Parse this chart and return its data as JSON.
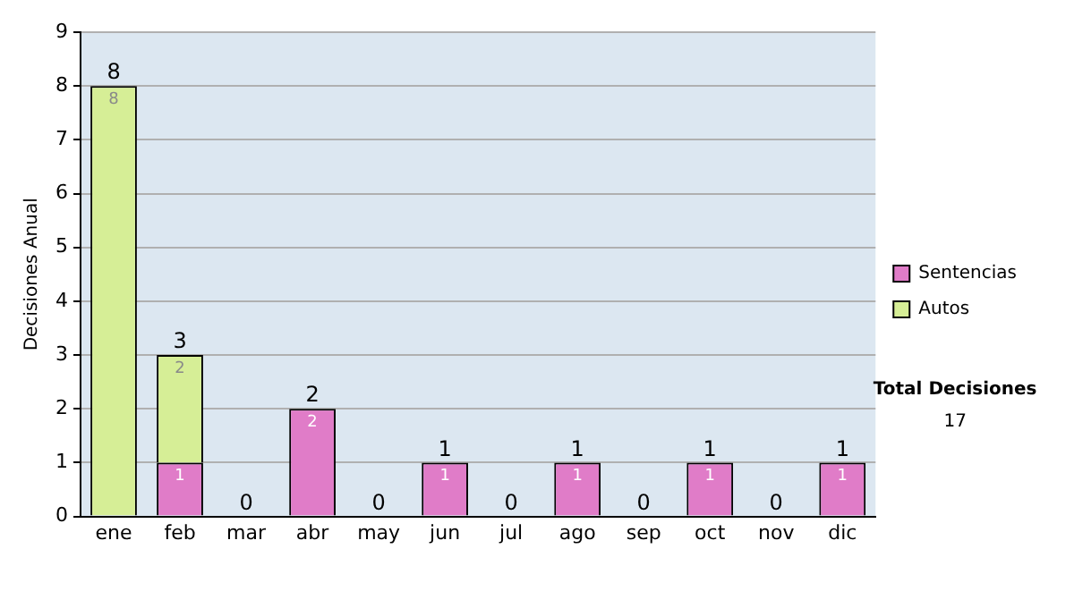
{
  "chart_data": {
    "type": "bar",
    "ylabel": "Decisiones Anual",
    "categories": [
      "ene",
      "feb",
      "mar",
      "abr",
      "may",
      "jun",
      "jul",
      "ago",
      "sep",
      "oct",
      "nov",
      "dic"
    ],
    "stacked": true,
    "series": [
      {
        "name": "Sentencias",
        "color": "#e07cc8",
        "values": [
          0,
          1,
          0,
          2,
          0,
          1,
          0,
          1,
          0,
          1,
          0,
          1
        ],
        "value_labels": [
          null,
          "1",
          null,
          "2",
          null,
          "1",
          null,
          "1",
          null,
          "1",
          null,
          "1"
        ]
      },
      {
        "name": "Autos",
        "color": "#d6ee96",
        "values": [
          8,
          2,
          0,
          0,
          0,
          0,
          0,
          0,
          0,
          0,
          0,
          0
        ],
        "value_labels": [
          "8",
          "2",
          null,
          null,
          null,
          null,
          null,
          null,
          null,
          null,
          null,
          null
        ]
      }
    ],
    "totals": [
      "8",
      "3",
      "0",
      "2",
      "0",
      "1",
      "0",
      "1",
      "0",
      "1",
      "0",
      "1"
    ],
    "ylim": [
      0,
      9
    ],
    "yticks": [
      0,
      1,
      2,
      3,
      4,
      5,
      6,
      7,
      8,
      9
    ],
    "grid": "y",
    "legend": "right",
    "annotations": [
      "Total Decisiones",
      "17"
    ]
  }
}
